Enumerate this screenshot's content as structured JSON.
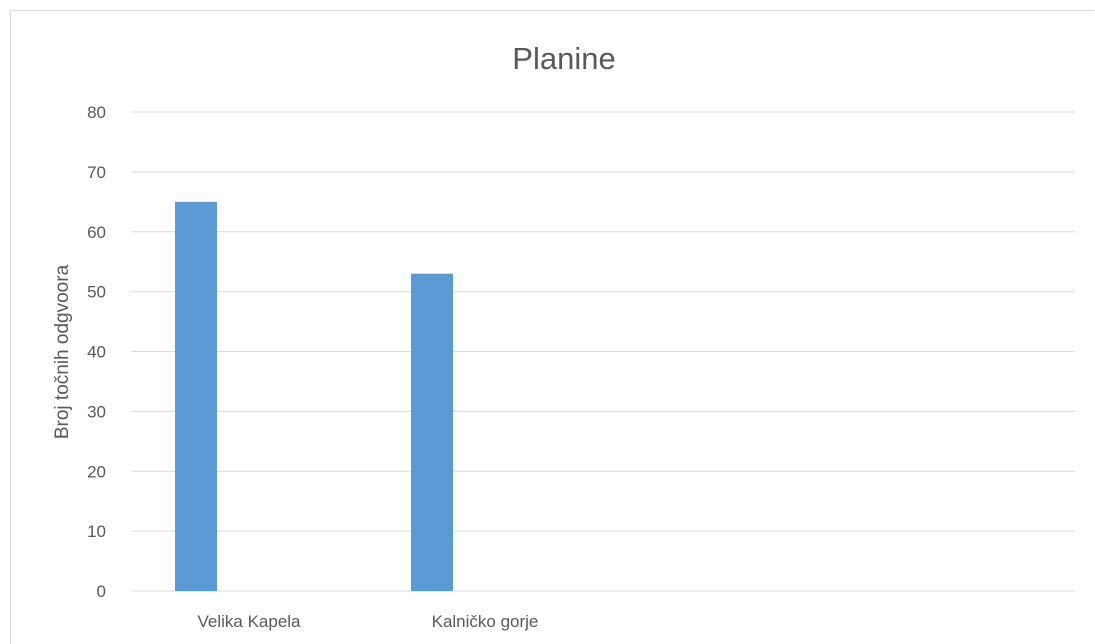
{
  "chart_data": {
    "type": "bar",
    "title": "Planine",
    "xlabel": "",
    "ylabel": "Broj točnih odgvoora",
    "categories": [
      "Velika Kapela",
      "Kalničko gorje"
    ],
    "values": [
      65,
      53
    ],
    "ylim": [
      0,
      80
    ],
    "yticks": [
      0,
      10,
      20,
      30,
      40,
      50,
      60,
      70,
      80
    ],
    "grid": true,
    "legend": "none",
    "bar_color": "#5b9bd5",
    "grid_color": "#d9d9d9",
    "text_color": "#595959"
  }
}
